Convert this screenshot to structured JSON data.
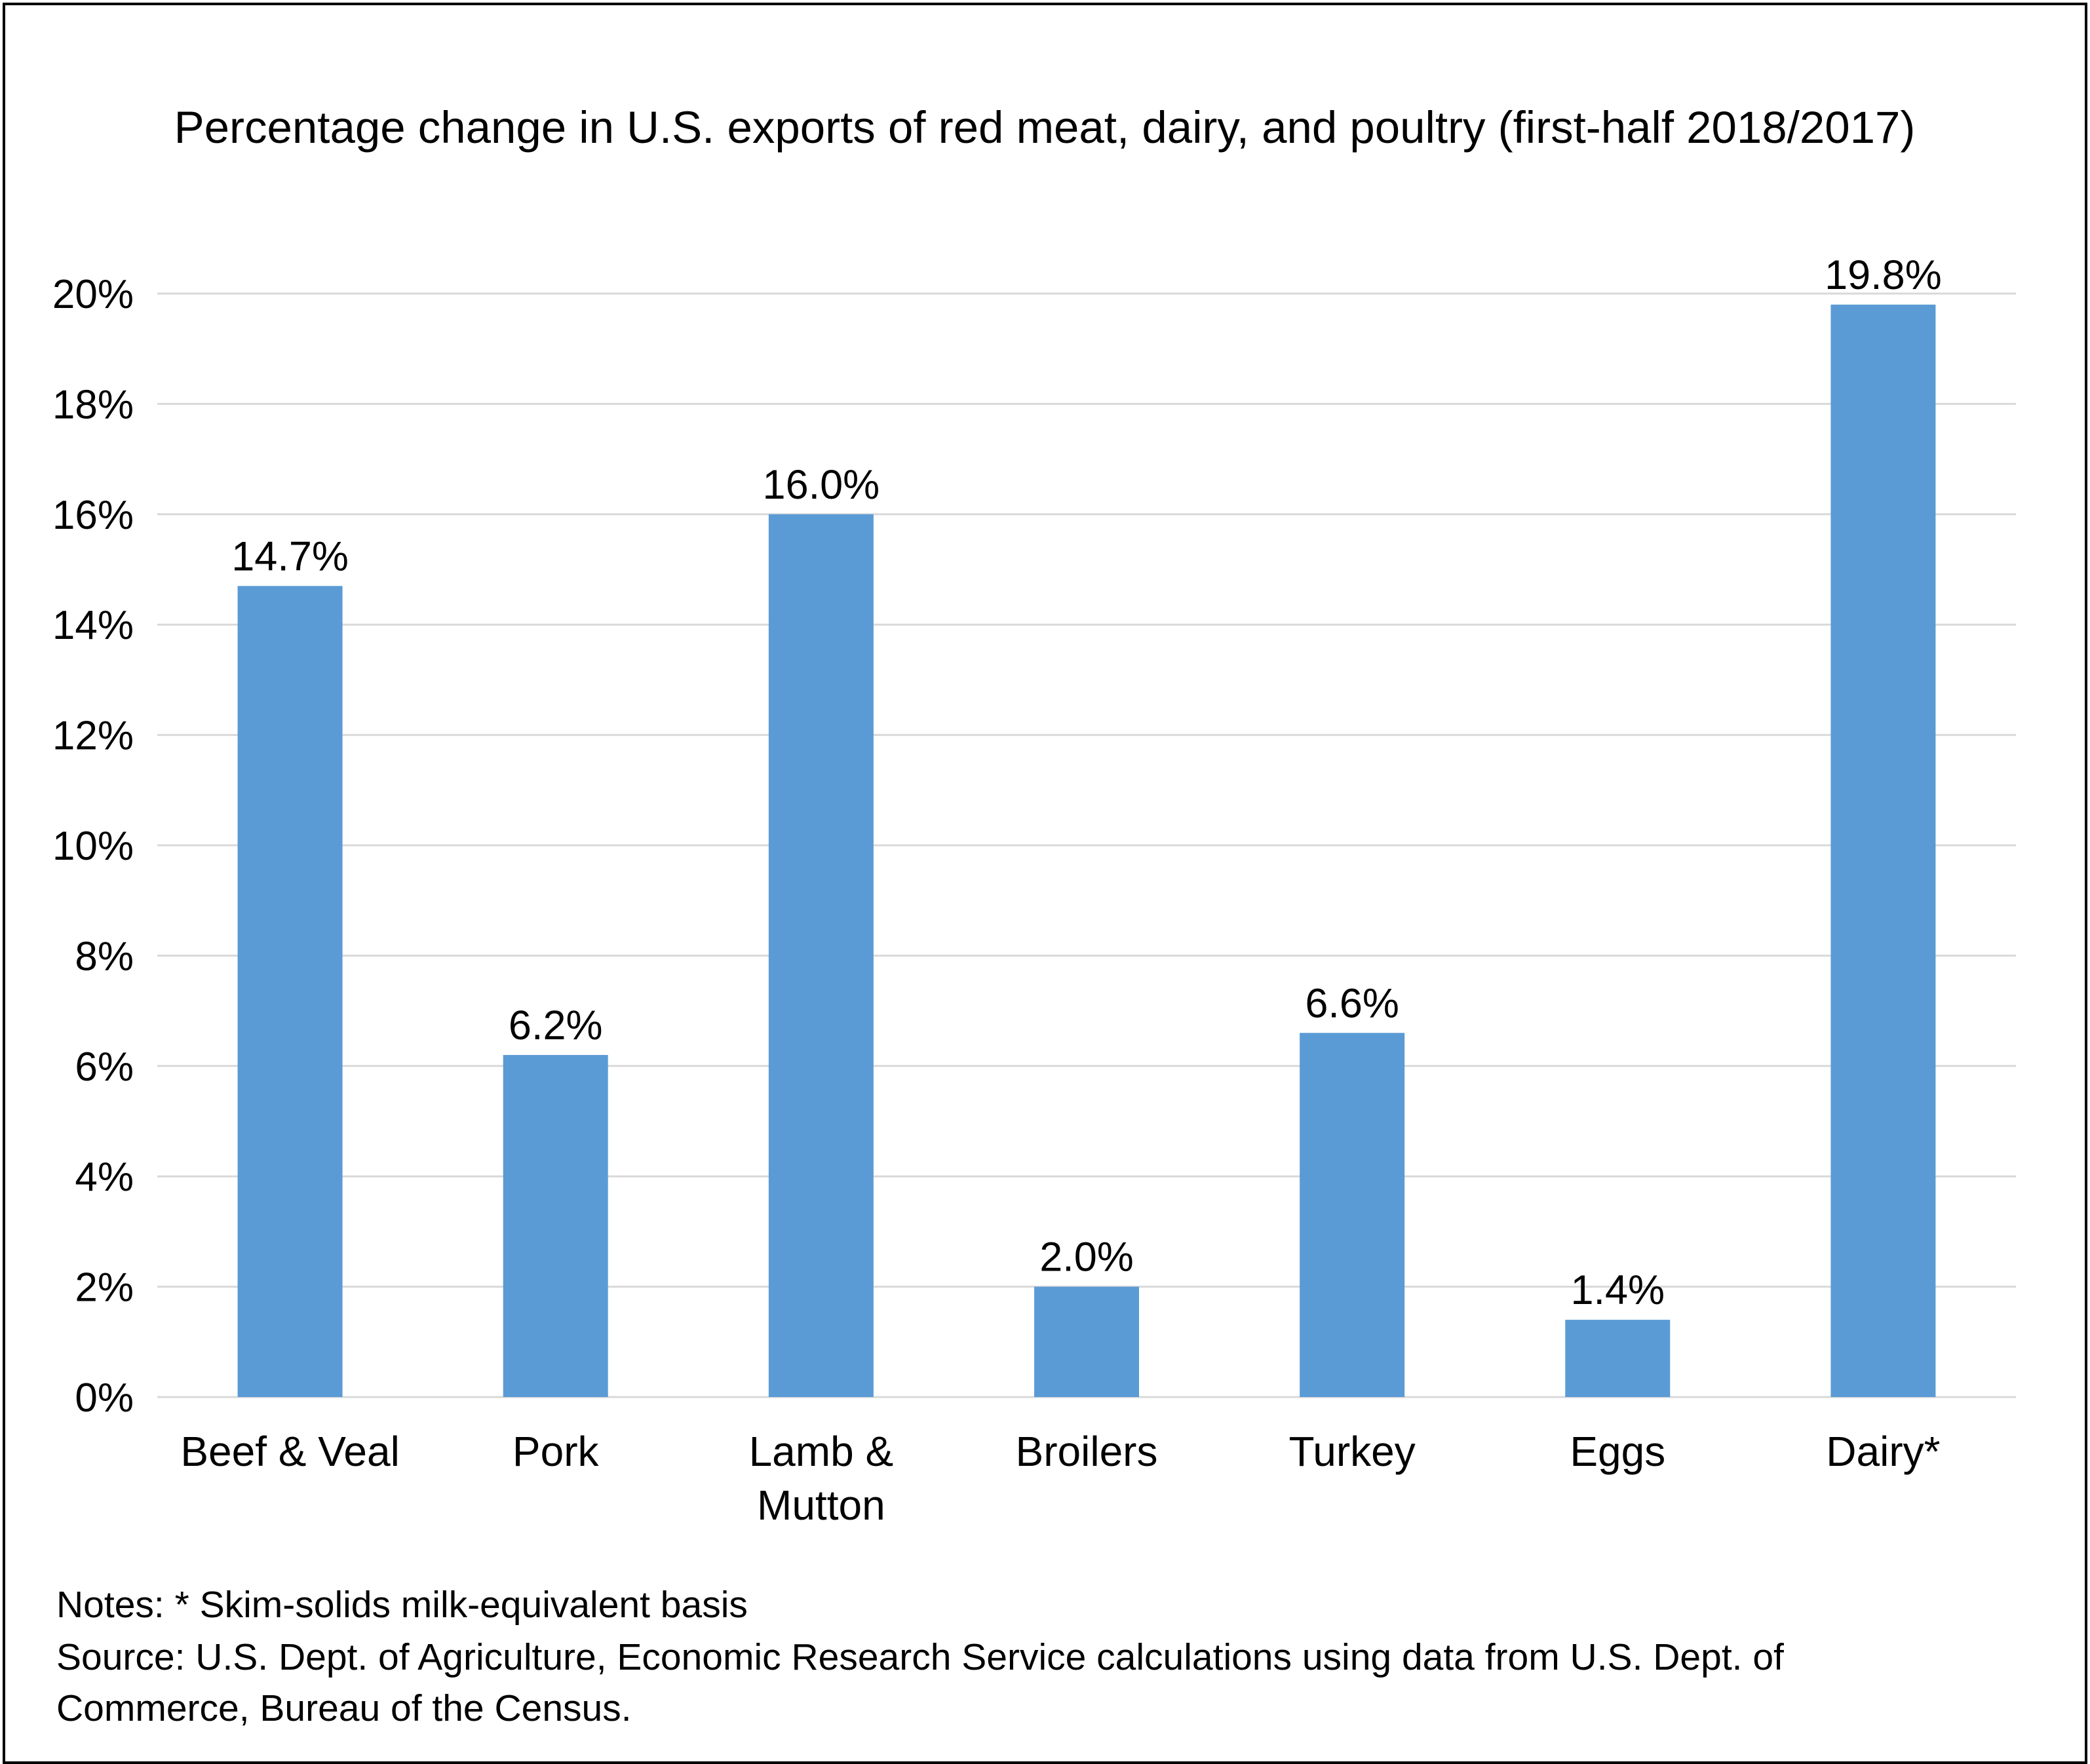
{
  "chart_data": {
    "type": "bar",
    "title": "Percentage change in U.S. exports of red meat, dairy, and poultry (first-half 2018/2017)",
    "xlabel": "",
    "ylabel": "",
    "categories": [
      [
        "Beef & Veal"
      ],
      [
        "Pork"
      ],
      [
        "Lamb &",
        "Mutton"
      ],
      [
        "Broilers"
      ],
      [
        "Turkey"
      ],
      [
        "Eggs"
      ],
      [
        "Dairy*"
      ]
    ],
    "values": [
      14.7,
      6.2,
      16.0,
      2.0,
      6.6,
      1.4,
      19.8
    ],
    "data_labels": [
      "14.7%",
      "6.2%",
      "16.0%",
      "2.0%",
      "6.6%",
      "1.4%",
      "19.8%"
    ],
    "ylim": [
      0,
      20
    ],
    "yticks": [
      0,
      2,
      4,
      6,
      8,
      10,
      12,
      14,
      16,
      18,
      20
    ],
    "ytick_labels": [
      "0%",
      "2%",
      "4%",
      "6%",
      "8%",
      "10%",
      "12%",
      "14%",
      "16%",
      "18%",
      "20%"
    ],
    "grid": true,
    "legend": "none",
    "bar_color": "#5b9bd5",
    "gridline_color": "#d9d9d9",
    "notes": [
      "Notes: * Skim-solids milk-equivalent basis",
      "Source: U.S. Dept. of Agriculture, Economic Research Service calculations using data from U.S. Dept. of",
      "Commerce, Bureau of the Census."
    ]
  }
}
